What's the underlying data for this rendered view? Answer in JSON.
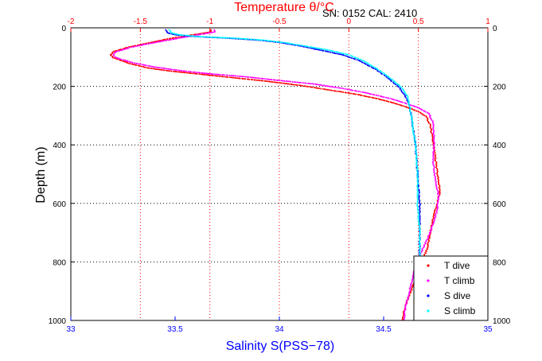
{
  "chart_data": {
    "type": "scatter",
    "annotation": "SN: 0152  CAL: 2410",
    "y_axis": {
      "label": "Depth (m)",
      "range": [
        0,
        1000
      ],
      "reversed": true,
      "ticks": [
        "0",
        "200",
        "400",
        "600",
        "800",
        "1000"
      ],
      "grid": true
    },
    "x_bottom": {
      "label": "Salinity S(PSS−78)",
      "range": [
        33,
        35
      ],
      "ticks": [
        "33",
        "33.5",
        "34",
        "34.5",
        "35"
      ],
      "color": "#0000ff"
    },
    "x_top": {
      "label": "Temperature θ/°C",
      "range": [
        -2,
        1
      ],
      "ticks": [
        "-2",
        "-1.5",
        "-1",
        "-0.5",
        "0",
        "0.5",
        "1"
      ],
      "color": "#ff0000",
      "grid": true
    },
    "legend": {
      "position": "bottom-right"
    },
    "series": [
      {
        "name": "T dive",
        "axis": "temperature",
        "color": "#ff0000",
        "points": [
          [
            -1.0,
            5
          ],
          [
            -1.0,
            12
          ],
          [
            -1.3,
            35
          ],
          [
            -1.45,
            50
          ],
          [
            -1.6,
            65
          ],
          [
            -1.7,
            80
          ],
          [
            -1.72,
            90
          ],
          [
            -1.7,
            100
          ],
          [
            -1.58,
            120
          ],
          [
            -1.45,
            135
          ],
          [
            -1.3,
            145
          ],
          [
            -1.1,
            155
          ],
          [
            -0.9,
            165
          ],
          [
            -0.6,
            180
          ],
          [
            -0.35,
            195
          ],
          [
            -0.15,
            210
          ],
          [
            0.05,
            225
          ],
          [
            0.2,
            240
          ],
          [
            0.32,
            255
          ],
          [
            0.42,
            270
          ],
          [
            0.5,
            285
          ],
          [
            0.55,
            300
          ],
          [
            0.58,
            330
          ],
          [
            0.6,
            380
          ],
          [
            0.62,
            450
          ],
          [
            0.64,
            520
          ],
          [
            0.65,
            560
          ],
          [
            0.63,
            600
          ],
          [
            0.6,
            650
          ],
          [
            0.58,
            700
          ],
          [
            0.56,
            750
          ],
          [
            0.52,
            800
          ],
          [
            0.48,
            850
          ],
          [
            0.44,
            900
          ],
          [
            0.4,
            950
          ],
          [
            0.38,
            1000
          ]
        ]
      },
      {
        "name": "T climb",
        "axis": "temperature",
        "color": "#ff00ff",
        "points": [
          [
            -0.97,
            5
          ],
          [
            -0.97,
            12
          ],
          [
            -1.25,
            35
          ],
          [
            -1.42,
            50
          ],
          [
            -1.58,
            65
          ],
          [
            -1.68,
            80
          ],
          [
            -1.7,
            90
          ],
          [
            -1.68,
            100
          ],
          [
            -1.55,
            118
          ],
          [
            -1.4,
            132
          ],
          [
            -1.2,
            145
          ],
          [
            -1.0,
            155
          ],
          [
            -0.75,
            165
          ],
          [
            -0.5,
            178
          ],
          [
            -0.25,
            190
          ],
          [
            -0.05,
            205
          ],
          [
            0.12,
            220
          ],
          [
            0.28,
            238
          ],
          [
            0.4,
            255
          ],
          [
            0.5,
            272
          ],
          [
            0.57,
            290
          ],
          [
            0.6,
            320
          ],
          [
            0.61,
            380
          ],
          [
            0.6,
            450
          ],
          [
            0.62,
            520
          ],
          [
            0.64,
            570
          ],
          [
            0.63,
            620
          ],
          [
            0.6,
            670
          ],
          [
            0.56,
            720
          ],
          [
            0.5,
            780
          ],
          [
            0.47,
            820
          ],
          [
            0.45,
            860
          ],
          [
            0.43,
            900
          ],
          [
            0.4,
            960
          ],
          [
            0.39,
            1000
          ]
        ]
      },
      {
        "name": "S dive",
        "axis": "salinity",
        "color": "#0000ff",
        "points": [
          [
            33.45,
            5
          ],
          [
            33.46,
            15
          ],
          [
            33.5,
            22
          ],
          [
            33.6,
            28
          ],
          [
            33.75,
            33
          ],
          [
            33.9,
            40
          ],
          [
            34.0,
            48
          ],
          [
            34.1,
            60
          ],
          [
            34.2,
            75
          ],
          [
            34.3,
            90
          ],
          [
            34.38,
            110
          ],
          [
            34.46,
            140
          ],
          [
            34.52,
            170
          ],
          [
            34.57,
            200
          ],
          [
            34.6,
            230
          ],
          [
            34.62,
            260
          ],
          [
            34.63,
            300
          ],
          [
            34.64,
            350
          ],
          [
            34.65,
            400
          ],
          [
            34.66,
            500
          ],
          [
            34.67,
            600
          ],
          [
            34.67,
            700
          ],
          [
            34.67,
            800
          ],
          [
            34.67,
            850
          ]
        ]
      },
      {
        "name": "S climb",
        "axis": "salinity",
        "color": "#00ffff",
        "points": [
          [
            33.47,
            5
          ],
          [
            33.48,
            15
          ],
          [
            33.52,
            22
          ],
          [
            33.62,
            28
          ],
          [
            33.78,
            33
          ],
          [
            33.92,
            40
          ],
          [
            34.02,
            48
          ],
          [
            34.12,
            60
          ],
          [
            34.24,
            75
          ],
          [
            34.33,
            90
          ],
          [
            34.4,
            110
          ],
          [
            34.47,
            140
          ],
          [
            34.53,
            170
          ],
          [
            34.58,
            200
          ],
          [
            34.61,
            230
          ],
          [
            34.62,
            260
          ],
          [
            34.63,
            300
          ],
          [
            34.64,
            350
          ],
          [
            34.65,
            400
          ],
          [
            34.66,
            500
          ],
          [
            34.66,
            600
          ],
          [
            34.67,
            700
          ],
          [
            34.67,
            800
          ],
          [
            34.67,
            850
          ]
        ]
      }
    ]
  }
}
